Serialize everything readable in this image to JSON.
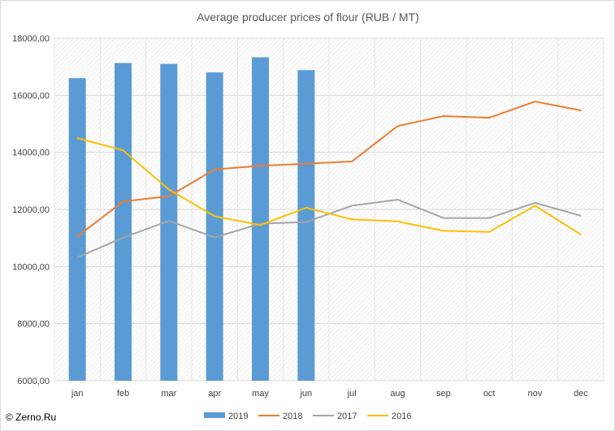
{
  "watermark": "© Zerno.Ru",
  "chart_data": {
    "type": "bar+line",
    "title": "Average producer prices of flour (RUB / MT)",
    "categories": [
      "jan",
      "feb",
      "mar",
      "apr",
      "may",
      "jun",
      "jul",
      "aug",
      "sep",
      "oct",
      "nov",
      "dec"
    ],
    "ylim": [
      6000,
      18000
    ],
    "yticks": [
      "6000,00",
      "8000,00",
      "10000,00",
      "12000,00",
      "14000,00",
      "16000,00",
      "18000,00"
    ],
    "grid": true,
    "legend_position": "bottom",
    "series": [
      {
        "name": "2019",
        "type": "bar",
        "color": "#5b9bd5",
        "values": [
          16600,
          17130,
          17100,
          16800,
          17330,
          16880,
          null,
          null,
          null,
          null,
          null,
          null
        ]
      },
      {
        "name": "2018",
        "type": "line",
        "color": "#ed7d31",
        "values": [
          11050,
          12280,
          12460,
          13400,
          13530,
          13600,
          13680,
          14920,
          15270,
          15210,
          15780,
          15470
        ]
      },
      {
        "name": "2017",
        "type": "line",
        "color": "#a5a5a5",
        "values": [
          10320,
          11010,
          11600,
          11020,
          11500,
          11560,
          12130,
          12340,
          11700,
          11700,
          12230,
          11780
        ]
      },
      {
        "name": "2016",
        "type": "line",
        "color": "#ffc000",
        "values": [
          14500,
          14070,
          12700,
          11760,
          11450,
          12060,
          11650,
          11580,
          11250,
          11210,
          12130,
          11120
        ]
      }
    ]
  }
}
